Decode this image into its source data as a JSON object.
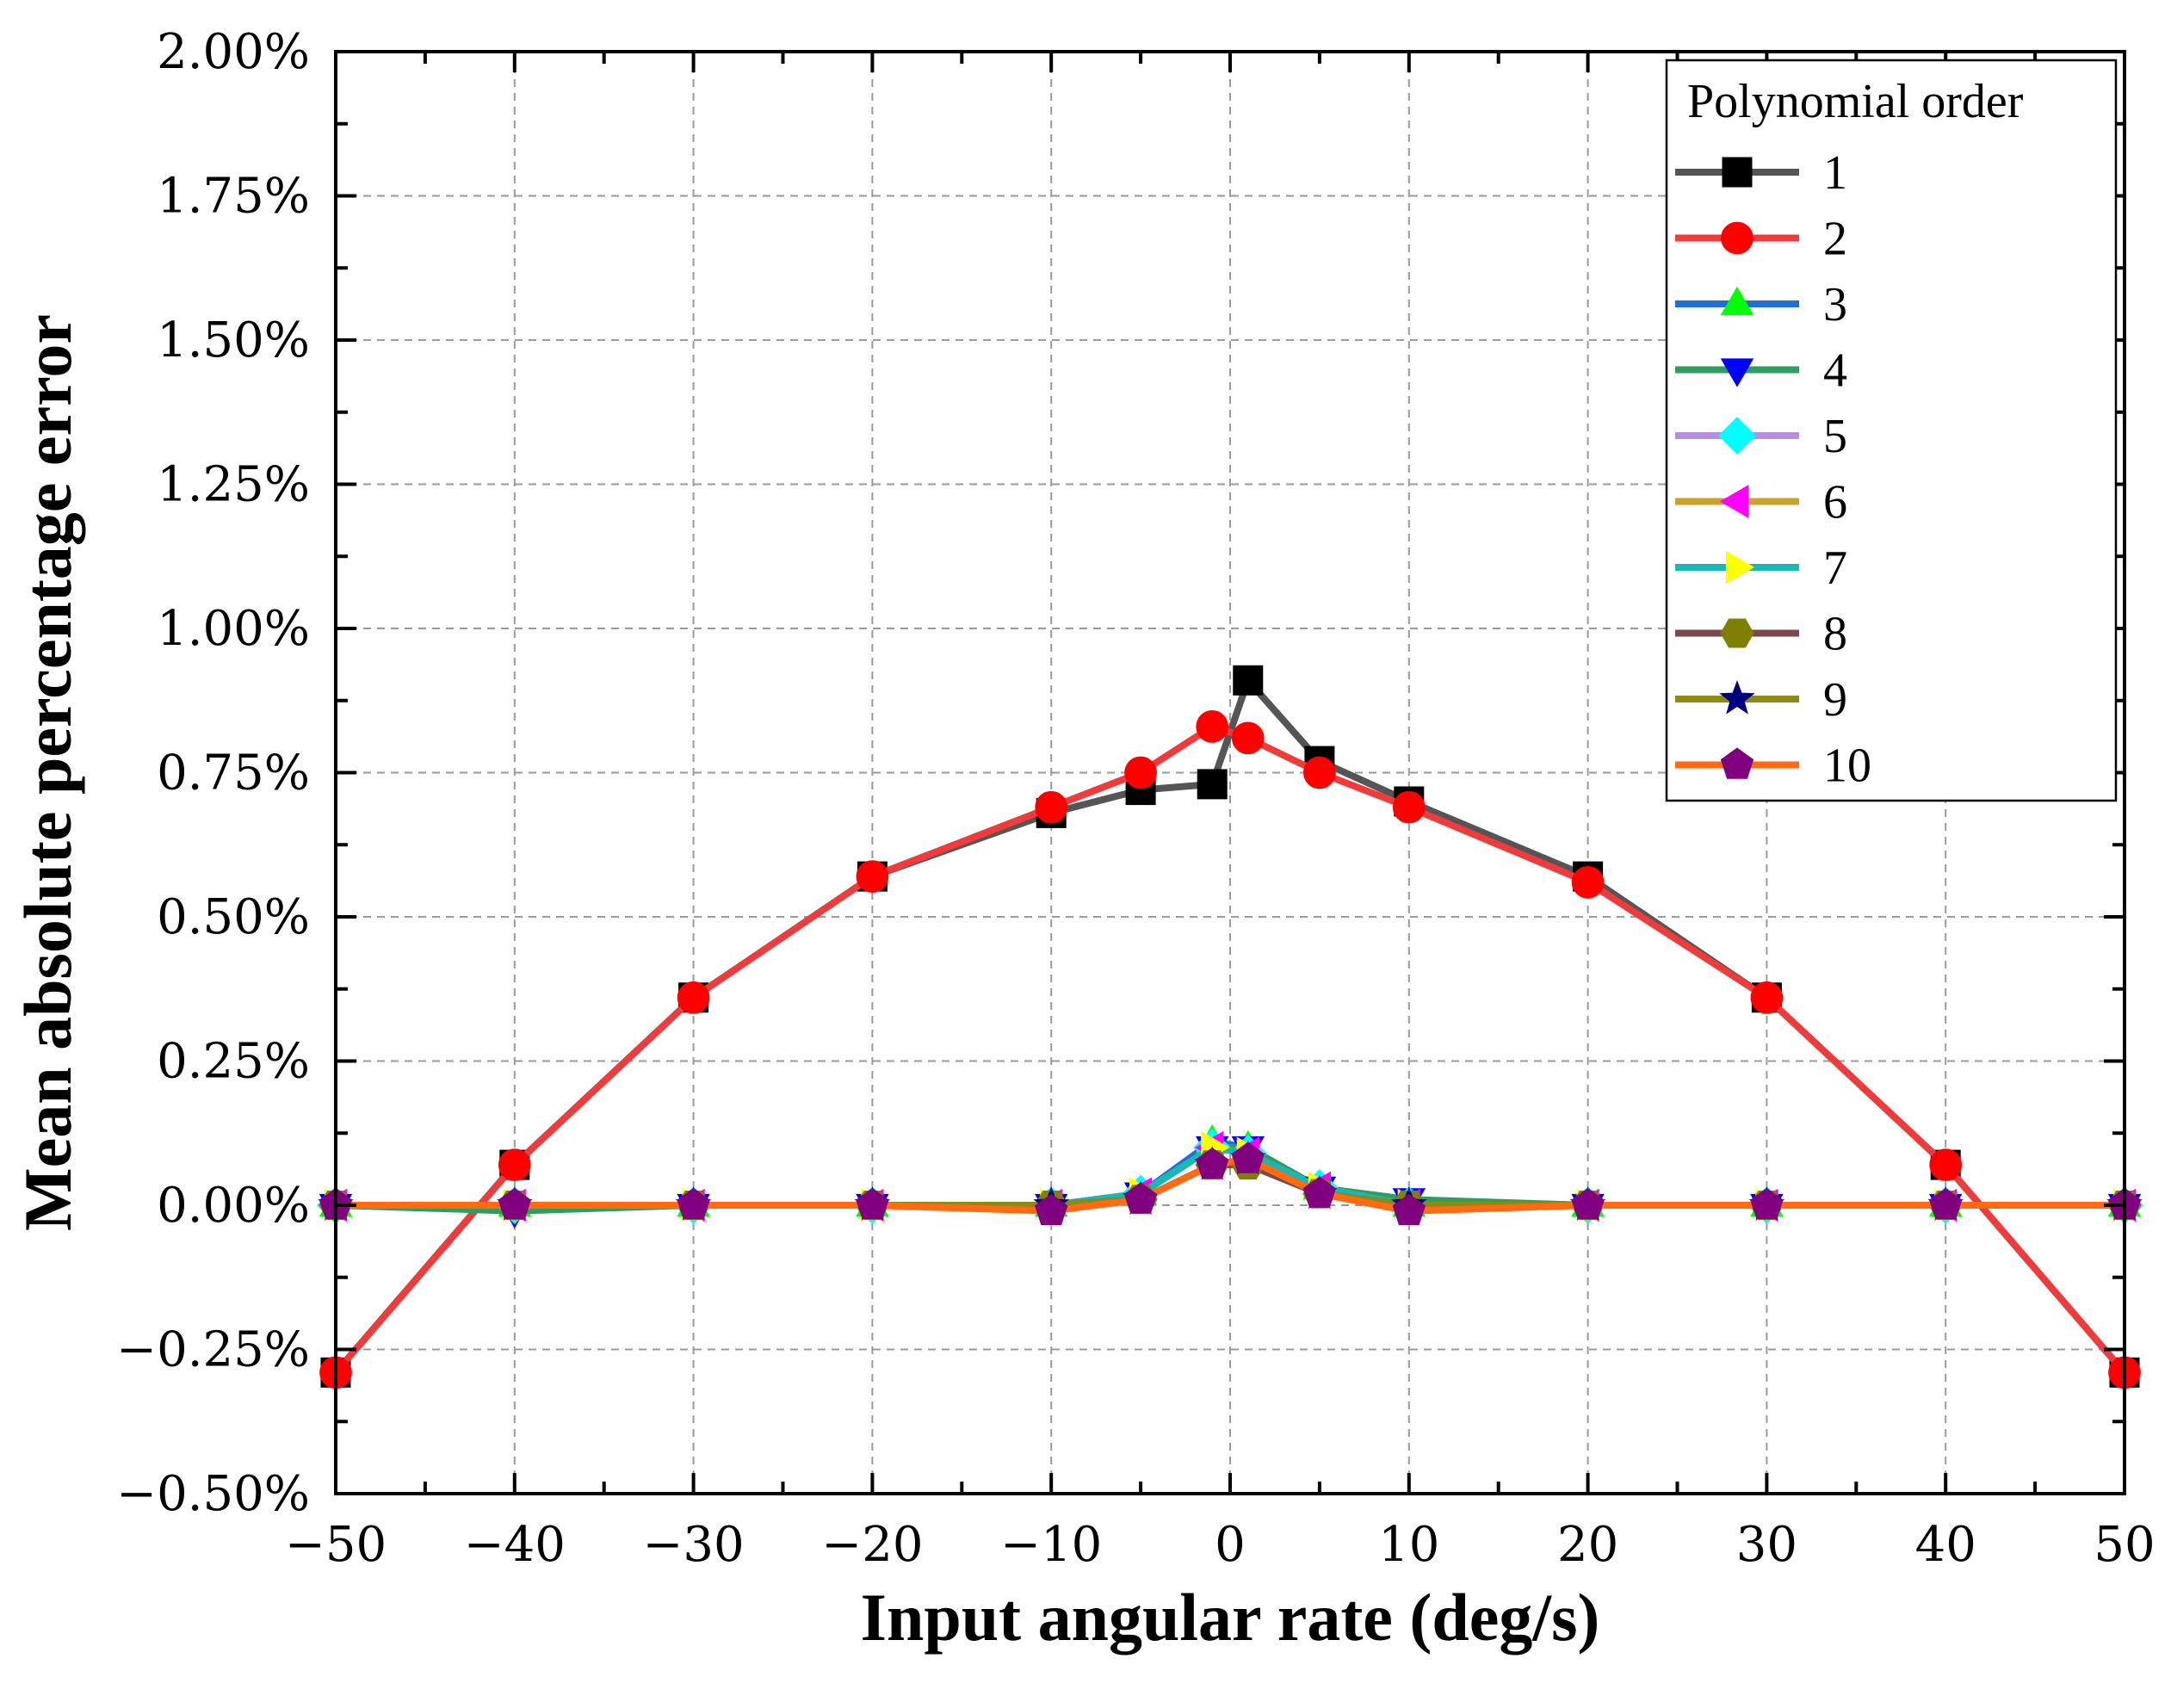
{
  "chart_data": {
    "type": "line",
    "xlabel": "Input angular rate (deg/s)",
    "ylabel": "Mean absolute percentage error",
    "xlim": [
      -50,
      50
    ],
    "ylim": [
      -0.5,
      2.0
    ],
    "x_ticks": [
      -50,
      -40,
      -30,
      -20,
      -10,
      0,
      10,
      20,
      30,
      40,
      50
    ],
    "x_tick_labels": [
      "−50",
      "−40",
      "−30",
      "−20",
      "−10",
      "0",
      "10",
      "20",
      "30",
      "40",
      "50"
    ],
    "y_ticks": [
      -0.5,
      -0.25,
      0,
      0.25,
      0.5,
      0.75,
      1.0,
      1.25,
      1.5,
      1.75,
      2.0
    ],
    "y_tick_labels": [
      "−0.50%",
      "−0.25%",
      "0.00%",
      "0.25%",
      "0.50%",
      "0.75%",
      "1.00%",
      "1.25%",
      "1.50%",
      "1.75%",
      "2.00%"
    ],
    "grid": true,
    "legend_title": "Polynomial order",
    "legend_position": "top-right",
    "x": [
      -50,
      -40,
      -30,
      -20,
      -10,
      -5,
      -1,
      1,
      5,
      10,
      20,
      30,
      40,
      50
    ],
    "series": [
      {
        "name": "1",
        "line_color": "#555555",
        "marker": "square",
        "marker_color": "#000000",
        "values": [
          -0.29,
          0.07,
          0.36,
          0.57,
          0.68,
          0.72,
          0.73,
          0.91,
          0.77,
          0.7,
          0.57,
          0.36,
          0.07,
          -0.29
        ]
      },
      {
        "name": "2",
        "line_color": "#ee3b3b",
        "marker": "circle",
        "marker_color": "#ff0000",
        "values": [
          -0.29,
          0.07,
          0.36,
          0.57,
          0.69,
          0.75,
          0.83,
          0.81,
          0.75,
          0.69,
          0.56,
          0.36,
          0.07,
          -0.29
        ]
      },
      {
        "name": "3",
        "line_color": "#1e6fd9",
        "marker": "triangle-up",
        "marker_color": "#00ff00",
        "values": [
          0.0,
          0.0,
          0.0,
          0.0,
          0.0,
          0.02,
          0.11,
          0.1,
          0.03,
          0.0,
          0.0,
          0.0,
          0.0,
          0.0
        ]
      },
      {
        "name": "4",
        "line_color": "#2e9e5e",
        "marker": "triangle-down",
        "marker_color": "#0000ff",
        "values": [
          0.0,
          -0.01,
          0.0,
          0.0,
          0.0,
          0.02,
          0.1,
          0.1,
          0.03,
          0.01,
          0.0,
          0.0,
          0.0,
          0.0
        ]
      },
      {
        "name": "5",
        "line_color": "#b58ee0",
        "marker": "diamond",
        "marker_color": "#00ffff",
        "values": [
          0.0,
          0.0,
          0.0,
          0.0,
          0.0,
          0.02,
          0.1,
          0.09,
          0.03,
          0.0,
          0.0,
          0.0,
          0.0,
          0.0
        ]
      },
      {
        "name": "6",
        "line_color": "#c9a227",
        "marker": "triangle-left",
        "marker_color": "#ff00ff",
        "values": [
          0.0,
          0.0,
          0.0,
          0.0,
          0.0,
          0.02,
          0.1,
          0.09,
          0.03,
          0.0,
          0.0,
          0.0,
          0.0,
          0.0
        ]
      },
      {
        "name": "7",
        "line_color": "#18b8b8",
        "marker": "triangle-right",
        "marker_color": "#ffff00",
        "values": [
          0.0,
          0.0,
          0.0,
          0.0,
          0.0,
          0.02,
          0.1,
          0.09,
          0.03,
          0.0,
          0.0,
          0.0,
          0.0,
          0.0
        ]
      },
      {
        "name": "8",
        "line_color": "#7a4a4a",
        "marker": "hexagon",
        "marker_color": "#808000",
        "values": [
          0.0,
          0.0,
          0.0,
          0.0,
          0.0,
          0.01,
          0.07,
          0.07,
          0.02,
          0.0,
          0.0,
          0.0,
          0.0,
          0.0
        ]
      },
      {
        "name": "9",
        "line_color": "#8a8a14",
        "marker": "star",
        "marker_color": "#000080",
        "values": [
          0.0,
          0.0,
          0.0,
          0.0,
          0.0,
          0.01,
          0.07,
          0.08,
          0.02,
          0.0,
          0.0,
          0.0,
          0.0,
          0.0
        ]
      },
      {
        "name": "10",
        "line_color": "#ff6a13",
        "marker": "pentagon",
        "marker_color": "#800080",
        "values": [
          0.0,
          0.0,
          0.0,
          0.0,
          -0.01,
          0.01,
          0.07,
          0.08,
          0.02,
          -0.01,
          0.0,
          0.0,
          0.0,
          0.0
        ]
      }
    ]
  }
}
